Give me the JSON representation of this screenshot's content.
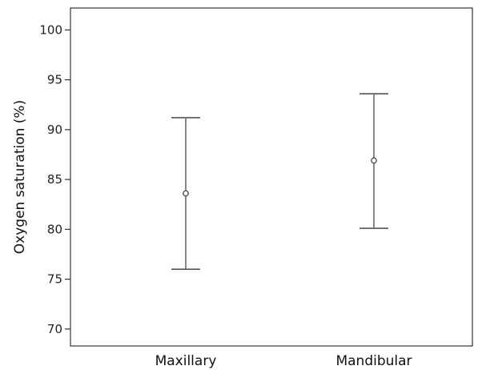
{
  "chart_data": {
    "type": "errorbar",
    "title": "",
    "xlabel": "",
    "ylabel": "Oxygen saturation (%)",
    "ylim": [
      68.3,
      102.2
    ],
    "yticks": [
      70,
      75,
      80,
      85,
      90,
      95,
      100
    ],
    "categories": [
      "Maxillary",
      "Mandibular"
    ],
    "series": [
      {
        "points": [
          {
            "category": "Maxillary",
            "mean": 83.6,
            "lower": 76.0,
            "upper": 91.2
          },
          {
            "category": "Mandibular",
            "mean": 86.9,
            "lower": 80.1,
            "upper": 93.6
          }
        ]
      }
    ],
    "grid": false,
    "legend": "none",
    "colors": {
      "errorbar": "#555555",
      "marker": "#555555",
      "axis": "#333333"
    }
  }
}
